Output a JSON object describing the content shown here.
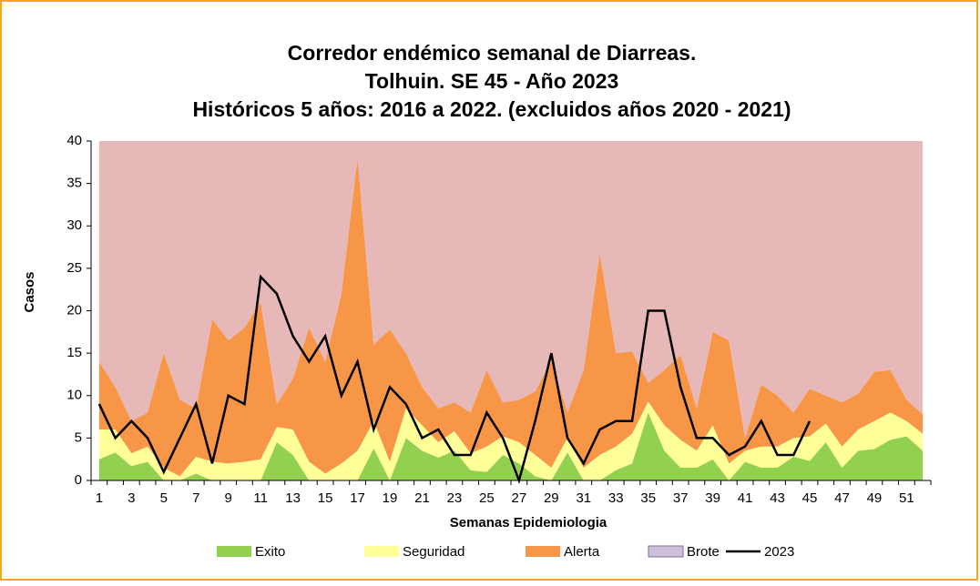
{
  "chart_data": {
    "type": "stacked_area",
    "title": [
      "Corredor endémico semanal de Diarreas.",
      "Tolhuin. SE 45 -  Año 2023",
      "Históricos 5 años: 2016 a 2022. (excluidos años 2020 - 2021)"
    ],
    "x_label": "Semanas Epidemiologia",
    "y_label": "Casos",
    "categories": [
      1,
      null,
      3,
      null,
      5,
      null,
      7,
      null,
      9,
      null,
      11,
      null,
      13,
      null,
      15,
      null,
      17,
      null,
      19,
      null,
      21,
      null,
      23,
      null,
      25,
      null,
      27,
      null,
      29,
      null,
      31,
      null,
      33,
      null,
      35,
      null,
      37,
      null,
      39,
      null,
      41,
      null,
      43,
      null,
      45,
      null,
      47,
      null,
      49,
      null,
      51,
      null
    ],
    "series": [
      {
        "name": "Exito",
        "color": "#92d050",
        "values": [
          2.5,
          3.3,
          1.7,
          2.2,
          0,
          0,
          0.8,
          0,
          0,
          0,
          0,
          4.5,
          3,
          0,
          0,
          0,
          0,
          3.8,
          0,
          5,
          3.5,
          2.7,
          3.5,
          1.2,
          1,
          3,
          2,
          0.5,
          0,
          3.3,
          0,
          0,
          1.2,
          2,
          8,
          3.5,
          1.5,
          1.5,
          2.5,
          0,
          2.2,
          1.5,
          1.5,
          2.8,
          2.3,
          4.5,
          1.5,
          3.5,
          3.7,
          4.8,
          5.2,
          3.5
        ]
      },
      {
        "name": "Seguridad",
        "color": "#ffff99",
        "values": [
          3.5,
          2.7,
          1.5,
          1.8,
          1.5,
          0.5,
          2,
          2.2,
          2,
          2.2,
          2.5,
          1.8,
          3,
          2.2,
          0.8,
          2,
          3.5,
          3.2,
          2.2,
          3.5,
          3,
          1.8,
          2.3,
          2,
          3,
          2.2,
          2.5,
          2.5,
          1.5,
          1.7,
          1.5,
          3,
          2.8,
          3.5,
          1.3,
          3,
          3.3,
          2,
          4,
          2,
          1.3,
          2.5,
          2.5,
          2.2,
          2.9,
          2.2,
          2.5,
          2.5,
          3.3,
          3.2,
          1.8,
          2
        ]
      },
      {
        "name": "Alerta",
        "color": "#f79646",
        "values": [
          8,
          5,
          3.8,
          4,
          13.5,
          9,
          5.7,
          16.8,
          14.5,
          15.8,
          18.5,
          2.7,
          6,
          15.8,
          13.2,
          20,
          34.5,
          9,
          15.6,
          6.5,
          4.5,
          4,
          3.4,
          4.8,
          9,
          4,
          5,
          7.5,
          12.5,
          3,
          11.5,
          23.8,
          11,
          9.7,
          2.2,
          6.5,
          10,
          5,
          11,
          14.5,
          1.5,
          7.3,
          6,
          3,
          5.6,
          3.3,
          5.2,
          4.2,
          5.8,
          5,
          2.5,
          2.3
        ]
      },
      {
        "name": "Brote",
        "color": "#e6b8b7",
        "legend_color": "#ccc0da",
        "values": [
          26,
          29,
          33,
          32,
          25,
          30.5,
          31.5,
          21,
          23.5,
          22,
          19,
          31,
          28,
          22,
          26,
          18,
          2,
          24,
          22.2,
          25,
          29,
          31.5,
          30.8,
          32,
          27,
          30.8,
          30.5,
          29.5,
          26,
          32,
          27,
          13.2,
          25,
          24.8,
          28.5,
          27,
          25.2,
          31.5,
          22.5,
          23.5,
          35,
          28.7,
          30,
          32,
          29.2,
          30,
          30.8,
          29.8,
          27.2,
          27,
          30.5,
          32.2
        ]
      }
    ],
    "line_series": {
      "name": "2023",
      "color": "#000000",
      "values": [
        9,
        5,
        7,
        5,
        1,
        5,
        9,
        2,
        10,
        9,
        24,
        22,
        17,
        14,
        17,
        10,
        14,
        6,
        11,
        9,
        5,
        6,
        3,
        3,
        8,
        5,
        0,
        7,
        15,
        5,
        2,
        6,
        7,
        7,
        20,
        20,
        11,
        5,
        5,
        3,
        4,
        7,
        3,
        3,
        7,
        null,
        null,
        null,
        null,
        null,
        null,
        null
      ]
    },
    "ylim": [
      0,
      40
    ],
    "yticks": [
      0,
      5,
      10,
      15,
      20,
      25,
      30,
      35,
      40
    ],
    "grid": false,
    "legend": "bottom"
  }
}
